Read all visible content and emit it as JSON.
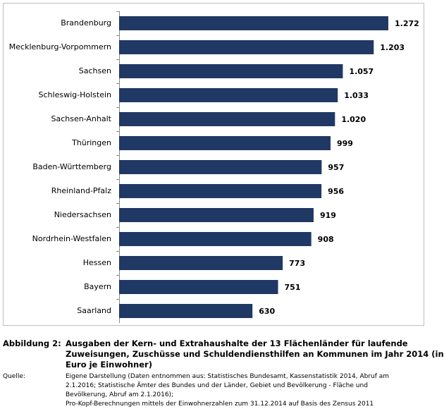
{
  "chart_data": {
    "type": "bar",
    "orientation": "horizontal",
    "categories": [
      "Brandenburg",
      "Mecklenburg-Vorpommern",
      "Sachsen",
      "Schleswig-Holstein",
      "Sachsen-Anhalt",
      "Thüringen",
      "Baden-Württemberg",
      "Rheinland-Pfalz",
      "Niedersachsen",
      "Nordrhein-Westfalen",
      "Hessen",
      "Bayern",
      "Saarland"
    ],
    "values": [
      1272,
      1203,
      1057,
      1033,
      1020,
      999,
      957,
      956,
      919,
      908,
      773,
      751,
      630
    ],
    "value_labels": [
      "1.272",
      "1.203",
      "1.057",
      "1.033",
      "1.020",
      "999",
      "957",
      "956",
      "919",
      "908",
      "773",
      "751",
      "630"
    ],
    "color": "#203864"
  },
  "caption": {
    "label": "Abbildung 2:",
    "title": [
      "Ausgaben der Kern- und Extrahaushalte der 13 Flächenländer für laufende",
      "Zuweisungen, Zuschüsse und Schuldendiensthilfen an Kommunen im Jahr 2014 (in",
      "Euro je Einwohner)"
    ],
    "source_label": "Quelle:",
    "source": [
      "Eigene Darstellung (Daten entnommen aus: Statistisches Bundesamt, Kassenstatistik 2014, Abruf am",
      "2.1.2016; Statistische Ämter des Bundes und der Länder, Gebiet und Bevölkerung - Fläche und",
      "Bevölkerung, Abruf am 2.1.2016);",
      "Pro-Kopf-Berechnungen mittels der Einwohnerzahlen zum 31.12.2014 auf Basis des Zensus 2011"
    ]
  }
}
